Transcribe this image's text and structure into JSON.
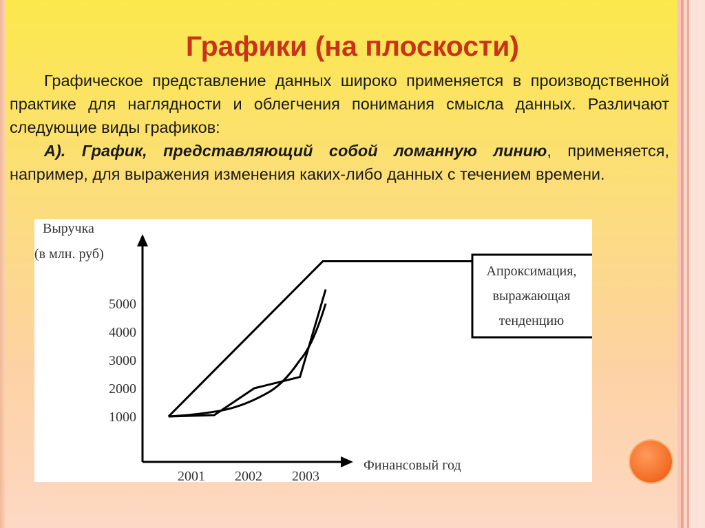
{
  "slide": {
    "title": "Графики (на плоскости)",
    "intro": "Графическое представление данных широко применяется в производственной практике для наглядности и облегчения понимания смысла данных. Различают следующие виды графиков:",
    "item_a_emphasis": "А). График, представляющий собой ломанную линию",
    "item_a_rest": ", применяется, например, для выражения изменения каких-либо данных с течением времени."
  },
  "chart_data": {
    "type": "line",
    "ylabel_line1": "Выручка",
    "ylabel_line2": "(в млн. руб)",
    "xlabel": "Финансовый год",
    "y_ticks": [
      "1000",
      "2000",
      "3000",
      "4000",
      "5000"
    ],
    "x_ticks": [
      "2001",
      "2002",
      "2003"
    ],
    "annotation": {
      "line1": "Апроксимация,",
      "line2": "выражающая",
      "line3": "тенденцию"
    },
    "series": [
      {
        "style": "polyline",
        "points": [
          [
            2000.6,
            1000
          ],
          [
            2001.4,
            1050
          ],
          [
            2002.1,
            2000
          ],
          [
            2002.9,
            2400
          ],
          [
            2003.35,
            5500
          ]
        ]
      },
      {
        "style": "curve",
        "points": [
          [
            2000.6,
            1000
          ],
          [
            2001.5,
            1200
          ],
          [
            2002.3,
            1800
          ],
          [
            2002.9,
            3000
          ],
          [
            2003.35,
            5000
          ]
        ]
      },
      {
        "style": "trend",
        "points": [
          [
            2000.6,
            1000
          ],
          [
            2003.3,
            6500
          ]
        ]
      }
    ],
    "colors": {
      "line": "#000000",
      "title": "#c8331a",
      "accent_circle": "#f26a22"
    }
  }
}
